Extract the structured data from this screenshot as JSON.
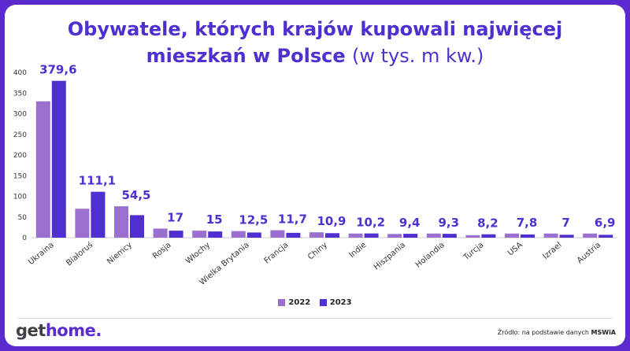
{
  "title": {
    "line1": "Obywatele, których krajów kupowali najwięcej",
    "line2_bold": "mieszkań w Polsce",
    "line2_unit": "(w tys. m kw.)"
  },
  "chart_data": {
    "type": "bar",
    "categories": [
      "Ukraina",
      "Białoruś",
      "Niemcy",
      "Rosja",
      "Włochy",
      "Wielka Brytania",
      "Francja",
      "Chiny",
      "Indie",
      "Hiszpania",
      "Holandia",
      "Turcja",
      "USA",
      "Izrael",
      "Austria"
    ],
    "series": [
      {
        "name": "2022",
        "color": "#9b6fd0",
        "values": [
          330,
          70,
          76,
          22,
          17,
          16,
          18,
          13,
          10,
          9,
          10,
          6,
          10,
          10,
          10
        ]
      },
      {
        "name": "2023",
        "color": "#4f2fcf",
        "values": [
          379.6,
          111.1,
          54.5,
          17,
          15,
          12.5,
          11.7,
          10.9,
          10.2,
          9.4,
          9.3,
          8.2,
          7.8,
          7,
          6.9
        ]
      }
    ],
    "data_labels": [
      "379,6",
      "111,1",
      "54,5",
      "17",
      "15",
      "12,5",
      "11,7",
      "10,9",
      "10,2",
      "9,4",
      "9,3",
      "8,2",
      "7,8",
      "7",
      "6,9"
    ],
    "yticks": [
      0,
      50,
      100,
      150,
      200,
      250,
      300,
      350,
      400
    ],
    "ylim": [
      0,
      400
    ],
    "legend_position": "bottom",
    "grid": false
  },
  "logo": {
    "part1": "get",
    "part2": "home."
  },
  "source": {
    "text": "Źródło: na podstawie danych",
    "bold": "MSWiA"
  }
}
